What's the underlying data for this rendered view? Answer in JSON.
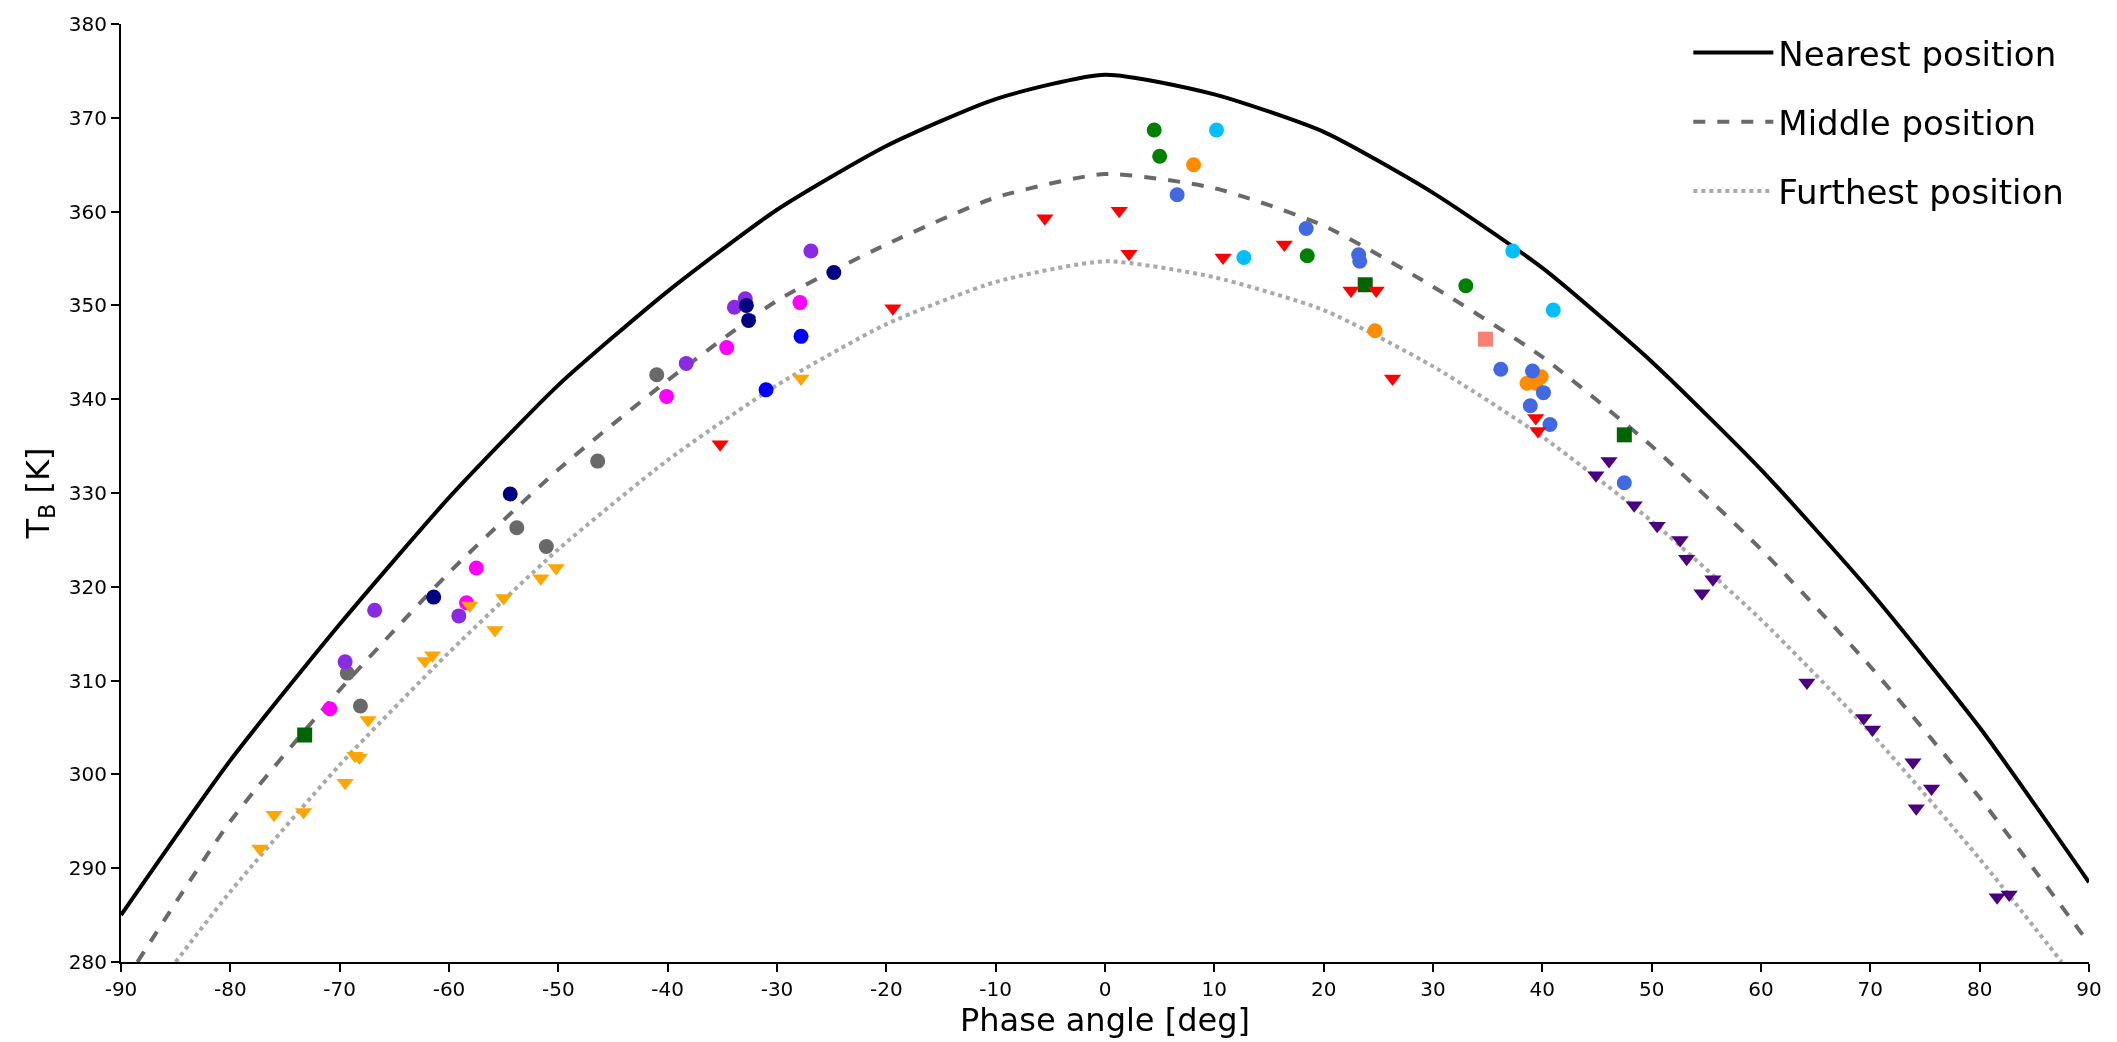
{
  "chart_data": {
    "type": "scatter",
    "xlabel": "Phase angle [deg]",
    "ylabel": "T$_{B}$ [K]",
    "xlim": [
      -90,
      90
    ],
    "xticks": [
      -90,
      -80,
      -70,
      -60,
      -50,
      -40,
      -30,
      -20,
      -10,
      0,
      10,
      20,
      30,
      40,
      50,
      60,
      70,
      80,
      90
    ],
    "ylim": [
      280,
      380
    ],
    "yticks": [
      280,
      290,
      300,
      310,
      320,
      330,
      340,
      350,
      360,
      370,
      380
    ],
    "legend": "top right",
    "series": [
      {
        "name": "Nearest position",
        "type": "line",
        "line_style": "solid",
        "color": "#000000",
        "x": [
          -90,
          -80,
          -70,
          -60,
          -50,
          -40,
          -30,
          -20,
          -10,
          0,
          10,
          20,
          30,
          40,
          50,
          60,
          70,
          80,
          90
        ],
        "values": [
          285,
          301.5,
          316,
          329.5,
          341.5,
          351.5,
          360.2,
          367,
          372,
          374.6,
          372.5,
          368.5,
          362,
          354,
          344,
          332.5,
          319.5,
          305,
          288.5
        ]
      },
      {
        "name": "Middle position",
        "type": "line",
        "line_style": "dashed",
        "color": "#696969",
        "x": [
          -88.5,
          -80,
          -70,
          -60,
          -50,
          -40,
          -30,
          -20,
          -10,
          0,
          10,
          20,
          30,
          40,
          50,
          60,
          70,
          80,
          90
        ],
        "values": [
          280,
          295,
          309,
          321.5,
          332.5,
          342,
          350.5,
          356.5,
          361.5,
          364,
          362.5,
          358.5,
          352,
          344.5,
          335,
          324,
          311.5,
          297.5,
          282
        ]
      },
      {
        "name": "Furthest position",
        "type": "line",
        "line_style": "dotted",
        "color": "#a9a9a9",
        "x": [
          -85,
          -80,
          -70,
          -60,
          -50,
          -40,
          -30,
          -20,
          -10,
          0,
          10,
          20,
          30,
          40,
          50,
          60,
          70,
          80,
          87.5
        ],
        "values": [
          280,
          287.5,
          301,
          313,
          324,
          333.5,
          341.5,
          348,
          352.5,
          354.7,
          353,
          349.5,
          343.5,
          336,
          327,
          316.5,
          304.5,
          291,
          280
        ]
      },
      {
        "marker": "triangle",
        "color": "#ffa500",
        "x": [
          -77.3,
          -76.0,
          -73.3,
          -69.5,
          -68.6,
          -68.2,
          -67.4,
          -62.2,
          -61.5,
          -58.1,
          -55.8,
          -55.0,
          -51.6,
          -50.2,
          -27.8
        ],
        "values": [
          292.1,
          295.7,
          296.0,
          299.1,
          302.0,
          301.8,
          305.8,
          312.1,
          312.7,
          318.0,
          315.4,
          318.8,
          320.9,
          322.0,
          342.2
        ]
      },
      {
        "marker": "circle",
        "color": "#696969",
        "x": [
          -69.3,
          -68.1,
          -53.8,
          -51.1,
          -46.4,
          -41.0
        ],
        "values": [
          310.8,
          307.3,
          326.3,
          324.3,
          333.4,
          342.6
        ]
      },
      {
        "marker": "circle",
        "color": "#ff00ff",
        "x": [
          -70.9,
          -58.4,
          -57.5,
          -40.1,
          -34.6,
          -27.9
        ],
        "values": [
          307.0,
          318.3,
          322.0,
          340.3,
          345.5,
          350.3
        ]
      },
      {
        "marker": "circle",
        "color": "#8a2be2",
        "x": [
          -69.5,
          -66.8,
          -59.1,
          -38.3,
          -33.9,
          -32.9,
          -26.9
        ],
        "values": [
          312.0,
          317.5,
          316.9,
          343.8,
          349.8,
          350.7,
          355.8
        ]
      },
      {
        "marker": "circle",
        "color": "#000080",
        "x": [
          -61.4,
          -54.4,
          -32.8,
          -32.6,
          -24.8
        ],
        "values": [
          318.9,
          329.9,
          350.0,
          348.4,
          353.5
        ]
      },
      {
        "marker": "circle",
        "color": "#0000ff",
        "x": [
          -31.0,
          -27.8
        ],
        "values": [
          341.0,
          346.7
        ]
      },
      {
        "marker": "triangle",
        "color": "#ff0000",
        "x": [
          -35.2,
          -19.4,
          -5.5,
          1.3,
          2.2,
          10.8,
          16.4,
          22.5,
          24.8,
          26.3,
          39.4,
          39.6
        ],
        "values": [
          335.2,
          349.7,
          359.3,
          360.1,
          355.5,
          355.1,
          356.5,
          351.6,
          351.6,
          342.2,
          338.0,
          336.6
        ]
      },
      {
        "marker": "circle",
        "color": "#008000",
        "x": [
          4.5,
          5.0,
          18.5,
          33.0
        ],
        "values": [
          368.7,
          365.9,
          355.3,
          352.1
        ]
      },
      {
        "marker": "circle",
        "color": "#ff8c00",
        "x": [
          8.1,
          24.7,
          38.6,
          39.4,
          39.9
        ],
        "values": [
          365.0,
          347.3,
          341.7,
          341.7,
          342.4
        ]
      },
      {
        "marker": "circle",
        "color": "#4169e1",
        "x": [
          6.6,
          18.4,
          23.2,
          23.3,
          36.2,
          39.1,
          40.1,
          38.9,
          40.7,
          47.5
        ],
        "values": [
          361.8,
          358.2,
          355.4,
          354.7,
          343.2,
          343.0,
          340.7,
          339.3,
          337.3,
          331.1
        ]
      },
      {
        "marker": "circle",
        "color": "#00bfff",
        "x": [
          10.2,
          12.7,
          37.3,
          41.0
        ],
        "values": [
          368.7,
          355.1,
          355.8,
          349.5
        ]
      },
      {
        "marker": "triangle",
        "color": "#4b0082",
        "x": [
          46.1,
          44.9,
          48.4,
          50.5,
          52.6,
          53.2,
          55.6,
          54.6,
          64.2,
          69.4,
          70.2,
          73.9,
          75.6,
          74.2,
          81.6,
          82.7
        ],
        "values": [
          333.4,
          331.9,
          328.7,
          326.5,
          325.0,
          323.0,
          320.8,
          319.3,
          309.8,
          306.0,
          304.8,
          301.3,
          298.5,
          296.4,
          286.9,
          287.2
        ]
      },
      {
        "marker": "square",
        "color": "#006400",
        "x": [
          -73.2,
          23.8,
          47.5
        ],
        "values": [
          304.2,
          352.2,
          336.2
        ]
      },
      {
        "marker": "square",
        "color": "#fa8072",
        "x": [
          34.8
        ],
        "values": [
          346.4
        ]
      }
    ]
  }
}
